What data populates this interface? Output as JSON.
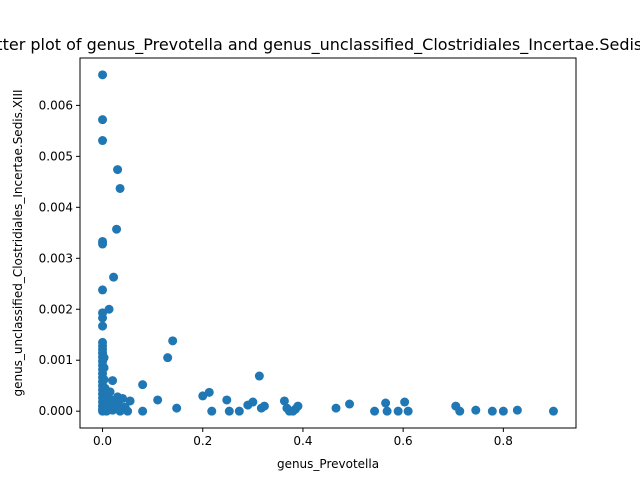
{
  "chart_data": {
    "type": "scatter",
    "title": "Scatter plot of genus_Prevotella and genus_unclassified_Clostridiales_Incertae.Sedis.XIII",
    "xlabel": "genus_Prevotella",
    "ylabel": "genus_unclassified_Clostridiales_Incertae.Sedis.XIII",
    "xlim": [
      -0.045,
      0.945
    ],
    "ylim": [
      -0.00033,
      0.00693
    ],
    "xticks": [
      0.0,
      0.2,
      0.4,
      0.6,
      0.8
    ],
    "xtick_labels": [
      "0.0",
      "0.2",
      "0.4",
      "0.6",
      "0.8"
    ],
    "yticks": [
      0.0,
      0.001,
      0.002,
      0.003,
      0.004,
      0.005,
      0.006
    ],
    "ytick_labels": [
      "0.000",
      "0.001",
      "0.002",
      "0.003",
      "0.004",
      "0.005",
      "0.006"
    ],
    "grid": false,
    "marker_color": "#1f77b4",
    "points": [
      [
        0.0,
        0.0066
      ],
      [
        0.0,
        0.00572
      ],
      [
        0.0,
        0.00531
      ],
      [
        0.0,
        0.00333
      ],
      [
        0.0,
        0.00328
      ],
      [
        0.0,
        0.00238
      ],
      [
        0.0,
        0.00193
      ],
      [
        0.0,
        0.00183
      ],
      [
        0.0,
        0.00167
      ],
      [
        0.0,
        0.00135
      ],
      [
        0.0,
        0.00128
      ],
      [
        0.0,
        0.00121
      ],
      [
        0.0,
        0.00114
      ],
      [
        0.0,
        0.00106
      ],
      [
        0.0,
        0.00098
      ],
      [
        0.0,
        0.0009
      ],
      [
        0.0,
        0.00082
      ],
      [
        0.0,
        0.00074
      ],
      [
        0.0,
        0.00066
      ],
      [
        0.0,
        0.00058
      ],
      [
        0.0,
        0.0005
      ],
      [
        0.0,
        0.00042
      ],
      [
        0.0,
        0.00034
      ],
      [
        0.0,
        0.00026
      ],
      [
        0.0,
        0.00018
      ],
      [
        0.0,
        0.0001
      ],
      [
        0.0,
        4e-05
      ],
      [
        0.0,
        0.0
      ],
      [
        0.003,
        0.00105
      ],
      [
        0.003,
        0.00085
      ],
      [
        0.003,
        0.00062
      ],
      [
        0.003,
        0.00038
      ],
      [
        0.003,
        0.00015
      ],
      [
        0.005,
        0.00045
      ],
      [
        0.005,
        0.00022
      ],
      [
        0.005,
        8e-05
      ],
      [
        0.007,
        0.00035
      ],
      [
        0.007,
        0.00012
      ],
      [
        0.008,
        0.0
      ],
      [
        0.01,
        0.0003
      ],
      [
        0.01,
        5e-05
      ],
      [
        0.012,
        0.00018
      ],
      [
        0.013,
        0.002
      ],
      [
        0.015,
        0.00038
      ],
      [
        0.015,
        8e-05
      ],
      [
        0.018,
        0.00022
      ],
      [
        0.02,
        0.0006
      ],
      [
        0.02,
        2e-05
      ],
      [
        0.022,
        0.00263
      ],
      [
        0.024,
        0.00012
      ],
      [
        0.028,
        0.00357
      ],
      [
        0.03,
        0.00474
      ],
      [
        0.03,
        0.00028
      ],
      [
        0.03,
        5e-05
      ],
      [
        0.032,
        0.00012
      ],
      [
        0.035,
        0.00437
      ],
      [
        0.035,
        0.0
      ],
      [
        0.04,
        0.00025
      ],
      [
        0.045,
        8e-05
      ],
      [
        0.05,
        0.0
      ],
      [
        0.055,
        0.0002
      ],
      [
        0.08,
        0.00052
      ],
      [
        0.08,
        0.0
      ],
      [
        0.11,
        0.00022
      ],
      [
        0.13,
        0.00105
      ],
      [
        0.14,
        0.00138
      ],
      [
        0.148,
        6e-05
      ],
      [
        0.2,
        0.0003
      ],
      [
        0.213,
        0.00037
      ],
      [
        0.218,
        0.0
      ],
      [
        0.248,
        0.00022
      ],
      [
        0.253,
        0.0
      ],
      [
        0.273,
        0.0
      ],
      [
        0.29,
        0.00012
      ],
      [
        0.3,
        0.00018
      ],
      [
        0.313,
        0.00069
      ],
      [
        0.317,
        6e-05
      ],
      [
        0.323,
        0.0001
      ],
      [
        0.363,
        0.0002
      ],
      [
        0.368,
        6e-05
      ],
      [
        0.373,
        0.0
      ],
      [
        0.38,
        0.0
      ],
      [
        0.385,
        4e-05
      ],
      [
        0.39,
        0.0001
      ],
      [
        0.466,
        6e-05
      ],
      [
        0.493,
        0.00014
      ],
      [
        0.543,
        0.0
      ],
      [
        0.565,
        0.00016
      ],
      [
        0.568,
        0.0
      ],
      [
        0.59,
        0.0
      ],
      [
        0.603,
        0.00018
      ],
      [
        0.61,
        0.0
      ],
      [
        0.705,
        0.0001
      ],
      [
        0.713,
        0.0
      ],
      [
        0.745,
        2e-05
      ],
      [
        0.778,
        0.0
      ],
      [
        0.8,
        0.0
      ],
      [
        0.828,
        2e-05
      ],
      [
        0.9,
        0.0
      ]
    ]
  }
}
